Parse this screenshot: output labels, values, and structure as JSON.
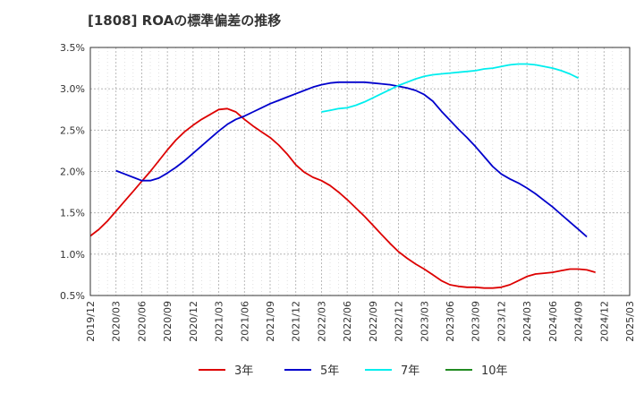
{
  "chart_data": {
    "type": "line",
    "title": "[1808]  ROAの標準偏差の推移",
    "xlabel": "",
    "ylabel": "",
    "ylim": [
      0.5,
      3.5
    ],
    "y_ticks": [
      "0.5%",
      "1.0%",
      "1.5%",
      "2.0%",
      "2.5%",
      "3.0%",
      "3.5%"
    ],
    "y_tick_values": [
      0.5,
      1.0,
      1.5,
      2.0,
      2.5,
      3.0,
      3.5
    ],
    "x_ticks": [
      "2019/12",
      "2020/03",
      "2020/06",
      "2020/09",
      "2020/12",
      "2021/03",
      "2021/06",
      "2021/09",
      "2021/12",
      "2022/03",
      "2022/06",
      "2022/09",
      "2022/12",
      "2023/03",
      "2023/06",
      "2023/09",
      "2023/12",
      "2024/03",
      "2024/06",
      "2024/09",
      "2024/12",
      "2025/03"
    ],
    "grid": true,
    "legend_position": "bottom",
    "series": [
      {
        "name": "3年",
        "color": "#dd0000",
        "points": [
          [
            "2019/12",
            1.22
          ],
          [
            "2020/01",
            1.3
          ],
          [
            "2020/02",
            1.4
          ],
          [
            "2020/03",
            1.52
          ],
          [
            "2020/04",
            1.64
          ],
          [
            "2020/05",
            1.76
          ],
          [
            "2020/06",
            1.88
          ],
          [
            "2020/07",
            2.0
          ],
          [
            "2020/08",
            2.13
          ],
          [
            "2020/09",
            2.26
          ],
          [
            "2020/10",
            2.38
          ],
          [
            "2020/11",
            2.48
          ],
          [
            "2020/12",
            2.56
          ],
          [
            "2021/01",
            2.63
          ],
          [
            "2021/02",
            2.69
          ],
          [
            "2021/03",
            2.75
          ],
          [
            "2021/04",
            2.76
          ],
          [
            "2021/05",
            2.72
          ],
          [
            "2021/06",
            2.63
          ],
          [
            "2021/07",
            2.55
          ],
          [
            "2021/08",
            2.48
          ],
          [
            "2021/09",
            2.41
          ],
          [
            "2021/10",
            2.32
          ],
          [
            "2021/11",
            2.21
          ],
          [
            "2021/12",
            2.08
          ],
          [
            "2022/01",
            1.99
          ],
          [
            "2022/02",
            1.93
          ],
          [
            "2022/03",
            1.89
          ],
          [
            "2022/04",
            1.83
          ],
          [
            "2022/05",
            1.75
          ],
          [
            "2022/06",
            1.66
          ],
          [
            "2022/07",
            1.56
          ],
          [
            "2022/08",
            1.46
          ],
          [
            "2022/09",
            1.35
          ],
          [
            "2022/10",
            1.24
          ],
          [
            "2022/11",
            1.13
          ],
          [
            "2022/12",
            1.03
          ],
          [
            "2023/01",
            0.95
          ],
          [
            "2023/02",
            0.88
          ],
          [
            "2023/03",
            0.82
          ],
          [
            "2023/04",
            0.75
          ],
          [
            "2023/05",
            0.68
          ],
          [
            "2023/06",
            0.63
          ],
          [
            "2023/07",
            0.61
          ],
          [
            "2023/08",
            0.6
          ],
          [
            "2023/09",
            0.6
          ],
          [
            "2023/10",
            0.59
          ],
          [
            "2023/11",
            0.59
          ],
          [
            "2023/12",
            0.6
          ],
          [
            "2024/01",
            0.63
          ],
          [
            "2024/02",
            0.68
          ],
          [
            "2024/03",
            0.73
          ],
          [
            "2024/04",
            0.76
          ],
          [
            "2024/05",
            0.77
          ],
          [
            "2024/06",
            0.78
          ],
          [
            "2024/07",
            0.8
          ],
          [
            "2024/08",
            0.82
          ],
          [
            "2024/09",
            0.82
          ],
          [
            "2024/10",
            0.81
          ],
          [
            "2024/11",
            0.78
          ]
        ]
      },
      {
        "name": "5年",
        "color": "#0000cc",
        "points": [
          [
            "2020/03",
            2.01
          ],
          [
            "2020/04",
            1.97
          ],
          [
            "2020/05",
            1.93
          ],
          [
            "2020/06",
            1.89
          ],
          [
            "2020/07",
            1.89
          ],
          [
            "2020/08",
            1.92
          ],
          [
            "2020/09",
            1.98
          ],
          [
            "2020/10",
            2.05
          ],
          [
            "2020/11",
            2.13
          ],
          [
            "2020/12",
            2.22
          ],
          [
            "2021/01",
            2.31
          ],
          [
            "2021/02",
            2.4
          ],
          [
            "2021/03",
            2.49
          ],
          [
            "2021/04",
            2.57
          ],
          [
            "2021/05",
            2.63
          ],
          [
            "2021/06",
            2.67
          ],
          [
            "2021/07",
            2.72
          ],
          [
            "2021/08",
            2.77
          ],
          [
            "2021/09",
            2.82
          ],
          [
            "2021/10",
            2.86
          ],
          [
            "2021/11",
            2.9
          ],
          [
            "2021/12",
            2.94
          ],
          [
            "2022/01",
            2.98
          ],
          [
            "2022/02",
            3.02
          ],
          [
            "2022/03",
            3.05
          ],
          [
            "2022/04",
            3.07
          ],
          [
            "2022/05",
            3.08
          ],
          [
            "2022/06",
            3.08
          ],
          [
            "2022/07",
            3.08
          ],
          [
            "2022/08",
            3.08
          ],
          [
            "2022/09",
            3.07
          ],
          [
            "2022/10",
            3.06
          ],
          [
            "2022/11",
            3.05
          ],
          [
            "2022/12",
            3.03
          ],
          [
            "2023/01",
            3.01
          ],
          [
            "2023/02",
            2.98
          ],
          [
            "2023/03",
            2.93
          ],
          [
            "2023/04",
            2.85
          ],
          [
            "2023/05",
            2.73
          ],
          [
            "2023/06",
            2.62
          ],
          [
            "2023/07",
            2.51
          ],
          [
            "2023/08",
            2.41
          ],
          [
            "2023/09",
            2.3
          ],
          [
            "2023/10",
            2.18
          ],
          [
            "2023/11",
            2.06
          ],
          [
            "2023/12",
            1.97
          ],
          [
            "2024/01",
            1.91
          ],
          [
            "2024/02",
            1.86
          ],
          [
            "2024/03",
            1.8
          ],
          [
            "2024/04",
            1.73
          ],
          [
            "2024/05",
            1.65
          ],
          [
            "2024/06",
            1.57
          ],
          [
            "2024/07",
            1.48
          ],
          [
            "2024/08",
            1.39
          ],
          [
            "2024/09",
            1.3
          ],
          [
            "2024/10",
            1.21
          ]
        ]
      },
      {
        "name": "7年",
        "color": "#00eeee",
        "points": [
          [
            "2022/03",
            2.72
          ],
          [
            "2022/04",
            2.74
          ],
          [
            "2022/05",
            2.76
          ],
          [
            "2022/06",
            2.77
          ],
          [
            "2022/07",
            2.8
          ],
          [
            "2022/08",
            2.84
          ],
          [
            "2022/09",
            2.89
          ],
          [
            "2022/10",
            2.94
          ],
          [
            "2022/11",
            2.99
          ],
          [
            "2022/12",
            3.04
          ],
          [
            "2023/01",
            3.08
          ],
          [
            "2023/02",
            3.12
          ],
          [
            "2023/03",
            3.15
          ],
          [
            "2023/04",
            3.17
          ],
          [
            "2023/05",
            3.18
          ],
          [
            "2023/06",
            3.19
          ],
          [
            "2023/07",
            3.2
          ],
          [
            "2023/08",
            3.21
          ],
          [
            "2023/09",
            3.22
          ],
          [
            "2023/10",
            3.24
          ],
          [
            "2023/11",
            3.25
          ],
          [
            "2023/12",
            3.27
          ],
          [
            "2024/01",
            3.29
          ],
          [
            "2024/02",
            3.3
          ],
          [
            "2024/03",
            3.3
          ],
          [
            "2024/04",
            3.29
          ],
          [
            "2024/05",
            3.27
          ],
          [
            "2024/06",
            3.25
          ],
          [
            "2024/07",
            3.22
          ],
          [
            "2024/08",
            3.18
          ],
          [
            "2024/09",
            3.13
          ]
        ]
      },
      {
        "name": "10年",
        "color": "#228b22",
        "points": []
      }
    ]
  }
}
